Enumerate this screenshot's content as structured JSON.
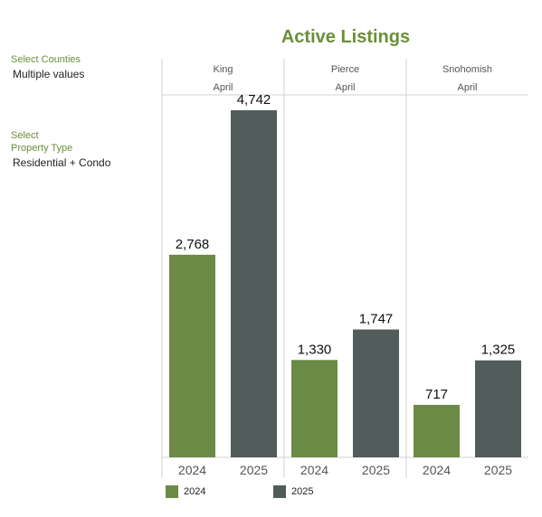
{
  "filters": {
    "counties_label": "Select Counties",
    "counties_value": "Multiple values",
    "property_label_line1": "Select",
    "property_label_line2": "Property Type",
    "property_value": "Residential + Condo"
  },
  "colors": {
    "series_2024": "#6a8a46",
    "series_2025": "#525c5a",
    "title": "#6b8e3a",
    "grid": "#d0d0d0"
  },
  "chart_data": {
    "type": "bar",
    "title": "Active Listings",
    "panels": [
      {
        "county": "King",
        "month": "April",
        "categories": [
          "2024",
          "2025"
        ],
        "values": [
          2768,
          4742
        ]
      },
      {
        "county": "Pierce",
        "month": "April",
        "categories": [
          "2024",
          "2025"
        ],
        "values": [
          1330,
          1747
        ]
      },
      {
        "county": "Snohomish",
        "month": "April",
        "categories": [
          "2024",
          "2025"
        ],
        "values": [
          717,
          1325
        ]
      }
    ],
    "value_labels": [
      [
        "2,768",
        "4,742"
      ],
      [
        "1,330",
        "1,747"
      ],
      [
        "717",
        "1,325"
      ]
    ],
    "series": [
      {
        "name": "2024",
        "color": "#6a8a46"
      },
      {
        "name": "2025",
        "color": "#525c5a"
      }
    ],
    "ylim": [
      0,
      5000
    ],
    "legend_position": "bottom-left"
  }
}
